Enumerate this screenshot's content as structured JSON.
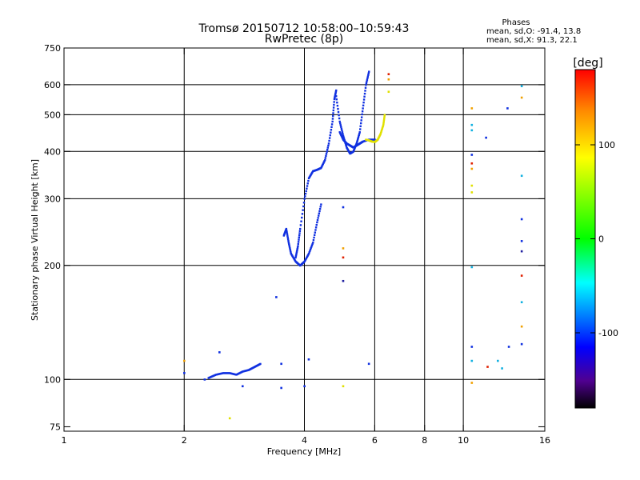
{
  "chart_data": {
    "type": "scatter",
    "title": "Tromsø 20150712 10:58:00–10:59:43",
    "subtitle": "RwPretec (8p)",
    "xlabel": "Frequency [MHz]",
    "ylabel": "Stationary phase Virtual Height [km]",
    "xscale": "log",
    "yscale": "log",
    "xlim": [
      1,
      16
    ],
    "ylim": [
      73,
      750
    ],
    "xticks": [
      1,
      2,
      4,
      6,
      8,
      10,
      16
    ],
    "yticks": [
      75,
      100,
      200,
      300,
      400,
      500,
      600,
      750
    ],
    "grid_x": [
      2,
      4,
      6,
      8,
      10
    ],
    "grid_y": [
      100,
      200,
      300,
      400,
      500,
      600
    ],
    "phases_box": {
      "title": "Phases",
      "line1": "mean, sd,O: -91.4, 13.8",
      "line2": "mean, sd,X:  91.3, 22.1"
    },
    "colorbar": {
      "label": "[deg]",
      "range": [
        -180,
        180
      ],
      "ticks": [
        100,
        0,
        -100
      ],
      "colors": [
        "#ff0000",
        "#ffaa00",
        "#ffff00",
        "#00ff00",
        "#00ffff",
        "#0070ff",
        "#0000ff",
        "#5000b0",
        "#000000"
      ]
    },
    "point_colors": {
      "blue": "#1030e0",
      "yellow": "#e0e000",
      "orange": "#f0a000",
      "red": "#e02000",
      "cyan": "#10b0e0",
      "darkblue": "#2020a0"
    },
    "trace_segments": [
      {
        "color": "blue",
        "points": [
          [
            2.3,
            101
          ],
          [
            2.4,
            103
          ],
          [
            2.5,
            104
          ],
          [
            2.6,
            104
          ],
          [
            2.7,
            103
          ],
          [
            2.8,
            105
          ],
          [
            2.9,
            106
          ],
          [
            3.0,
            108
          ],
          [
            3.1,
            110
          ]
        ]
      },
      {
        "color": "blue",
        "points": [
          [
            3.55,
            240
          ],
          [
            3.6,
            250
          ],
          [
            3.65,
            230
          ],
          [
            3.7,
            215
          ],
          [
            3.8,
            205
          ],
          [
            3.9,
            200
          ],
          [
            4.0,
            205
          ],
          [
            4.1,
            215
          ],
          [
            4.2,
            230
          ],
          [
            4.3,
            260
          ],
          [
            4.4,
            290
          ]
        ]
      },
      {
        "color": "blue",
        "points": [
          [
            3.8,
            210
          ],
          [
            3.85,
            225
          ],
          [
            3.9,
            250
          ],
          [
            4.0,
            300
          ],
          [
            4.1,
            340
          ],
          [
            4.2,
            355
          ],
          [
            4.3,
            358
          ],
          [
            4.4,
            362
          ],
          [
            4.5,
            380
          ],
          [
            4.6,
            420
          ],
          [
            4.7,
            480
          ],
          [
            4.75,
            550
          ],
          [
            4.8,
            580
          ]
        ]
      },
      {
        "color": "blue",
        "points": [
          [
            4.8,
            560
          ],
          [
            4.9,
            480
          ],
          [
            5.0,
            440
          ],
          [
            5.1,
            410
          ],
          [
            5.2,
            395
          ],
          [
            5.3,
            400
          ],
          [
            5.4,
            420
          ],
          [
            5.5,
            450
          ],
          [
            5.6,
            520
          ],
          [
            5.7,
            600
          ],
          [
            5.8,
            650
          ]
        ]
      },
      {
        "color": "blue",
        "points": [
          [
            4.9,
            450
          ],
          [
            5.0,
            430
          ],
          [
            5.1,
            420
          ],
          [
            5.2,
            415
          ],
          [
            5.3,
            410
          ],
          [
            5.4,
            415
          ],
          [
            5.5,
            420
          ],
          [
            5.6,
            425
          ],
          [
            5.8,
            430
          ],
          [
            6.0,
            430
          ]
        ]
      },
      {
        "color": "yellow",
        "points": [
          [
            5.7,
            430
          ],
          [
            5.8,
            428
          ],
          [
            5.9,
            425
          ],
          [
            6.0,
            424
          ],
          [
            6.1,
            430
          ],
          [
            6.2,
            445
          ],
          [
            6.3,
            470
          ],
          [
            6.35,
            500
          ]
        ]
      }
    ],
    "scatter_points": [
      {
        "x": 2.0,
        "y": 104,
        "color": "blue"
      },
      {
        "x": 2.0,
        "y": 112,
        "color": "orange"
      },
      {
        "x": 2.25,
        "y": 100,
        "color": "blue"
      },
      {
        "x": 2.45,
        "y": 118,
        "color": "blue"
      },
      {
        "x": 2.8,
        "y": 96,
        "color": "blue"
      },
      {
        "x": 2.6,
        "y": 79,
        "color": "yellow"
      },
      {
        "x": 3.4,
        "y": 165,
        "color": "blue"
      },
      {
        "x": 3.5,
        "y": 110,
        "color": "blue"
      },
      {
        "x": 3.5,
        "y": 95,
        "color": "blue"
      },
      {
        "x": 4.0,
        "y": 96,
        "color": "blue"
      },
      {
        "x": 4.1,
        "y": 113,
        "color": "blue"
      },
      {
        "x": 5.0,
        "y": 285,
        "color": "blue"
      },
      {
        "x": 5.0,
        "y": 222,
        "color": "orange"
      },
      {
        "x": 5.0,
        "y": 210,
        "color": "red"
      },
      {
        "x": 5.0,
        "y": 182,
        "color": "darkblue"
      },
      {
        "x": 5.0,
        "y": 96,
        "color": "yellow"
      },
      {
        "x": 5.8,
        "y": 110,
        "color": "blue"
      },
      {
        "x": 6.5,
        "y": 640,
        "color": "red"
      },
      {
        "x": 6.5,
        "y": 620,
        "color": "orange"
      },
      {
        "x": 6.5,
        "y": 575,
        "color": "yellow"
      },
      {
        "x": 10.5,
        "y": 520,
        "color": "orange"
      },
      {
        "x": 10.5,
        "y": 470,
        "color": "cyan"
      },
      {
        "x": 10.5,
        "y": 455,
        "color": "cyan"
      },
      {
        "x": 10.5,
        "y": 392,
        "color": "blue"
      },
      {
        "x": 10.5,
        "y": 372,
        "color": "red"
      },
      {
        "x": 10.5,
        "y": 360,
        "color": "orange"
      },
      {
        "x": 10.5,
        "y": 325,
        "color": "yellow"
      },
      {
        "x": 10.5,
        "y": 312,
        "color": "yellow"
      },
      {
        "x": 10.5,
        "y": 198,
        "color": "cyan"
      },
      {
        "x": 10.5,
        "y": 122,
        "color": "blue"
      },
      {
        "x": 10.5,
        "y": 112,
        "color": "cyan"
      },
      {
        "x": 10.5,
        "y": 98,
        "color": "orange"
      },
      {
        "x": 11.4,
        "y": 435,
        "color": "blue"
      },
      {
        "x": 11.5,
        "y": 108,
        "color": "red"
      },
      {
        "x": 12.2,
        "y": 112,
        "color": "cyan"
      },
      {
        "x": 12.5,
        "y": 107,
        "color": "cyan"
      },
      {
        "x": 12.9,
        "y": 520,
        "color": "blue"
      },
      {
        "x": 13.0,
        "y": 122,
        "color": "blue"
      },
      {
        "x": 14.0,
        "y": 595,
        "color": "cyan"
      },
      {
        "x": 14.0,
        "y": 555,
        "color": "orange"
      },
      {
        "x": 14.0,
        "y": 345,
        "color": "cyan"
      },
      {
        "x": 14.0,
        "y": 265,
        "color": "blue"
      },
      {
        "x": 14.0,
        "y": 232,
        "color": "blue"
      },
      {
        "x": 14.0,
        "y": 218,
        "color": "darkblue"
      },
      {
        "x": 14.0,
        "y": 188,
        "color": "red"
      },
      {
        "x": 14.0,
        "y": 160,
        "color": "cyan"
      },
      {
        "x": 14.0,
        "y": 138,
        "color": "orange"
      },
      {
        "x": 14.0,
        "y": 124,
        "color": "blue"
      }
    ]
  }
}
